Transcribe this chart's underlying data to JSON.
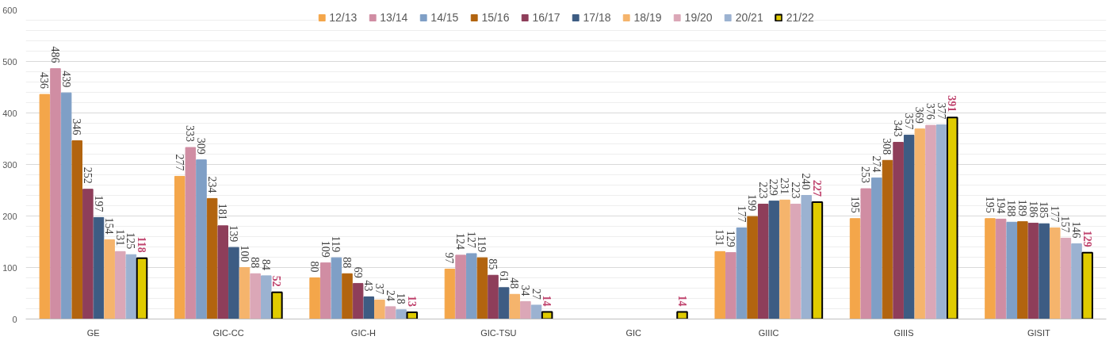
{
  "chart_data": {
    "type": "bar",
    "categories": [
      "GE",
      "GIC-CC",
      "GIC-H",
      "GIC-TSU",
      "GIC",
      "GIIIC",
      "GIIIS",
      "GISIT"
    ],
    "series": [
      {
        "name": "12/13",
        "color": "#f4a64a",
        "values": [
          436,
          277,
          80,
          97,
          null,
          131,
          195,
          195
        ]
      },
      {
        "name": "13/14",
        "color": "#d08da3",
        "values": [
          486,
          333,
          109,
          124,
          null,
          129,
          253,
          194
        ]
      },
      {
        "name": "14/15",
        "color": "#7f9fc6",
        "values": [
          439,
          309,
          119,
          127,
          null,
          177,
          274,
          188
        ]
      },
      {
        "name": "15/16",
        "color": "#b2640f",
        "values": [
          346,
          234,
          88,
          119,
          null,
          199,
          308,
          189
        ]
      },
      {
        "name": "16/17",
        "color": "#8e3e5a",
        "values": [
          252,
          181,
          69,
          85,
          null,
          223,
          343,
          186
        ]
      },
      {
        "name": "17/18",
        "color": "#3d5c83",
        "values": [
          197,
          139,
          43,
          61,
          null,
          229,
          357,
          185
        ]
      },
      {
        "name": "18/19",
        "color": "#f5b46c",
        "values": [
          154,
          100,
          37,
          48,
          null,
          231,
          369,
          177
        ]
      },
      {
        "name": "19/20",
        "color": "#dba7b7",
        "values": [
          131,
          88,
          24,
          34,
          null,
          223,
          376,
          157
        ]
      },
      {
        "name": "20/21",
        "color": "#9bb2d1",
        "values": [
          125,
          84,
          18,
          27,
          null,
          240,
          377,
          146
        ]
      },
      {
        "name": "21/22",
        "color": "#e0cb00",
        "values": [
          118,
          52,
          13,
          14,
          14,
          227,
          391,
          129
        ]
      }
    ],
    "ylim": [
      0,
      600
    ],
    "yticks": [
      0,
      100,
      200,
      300,
      400,
      500,
      600
    ],
    "grid": "y",
    "legend": "top",
    "data_labels": true
  }
}
